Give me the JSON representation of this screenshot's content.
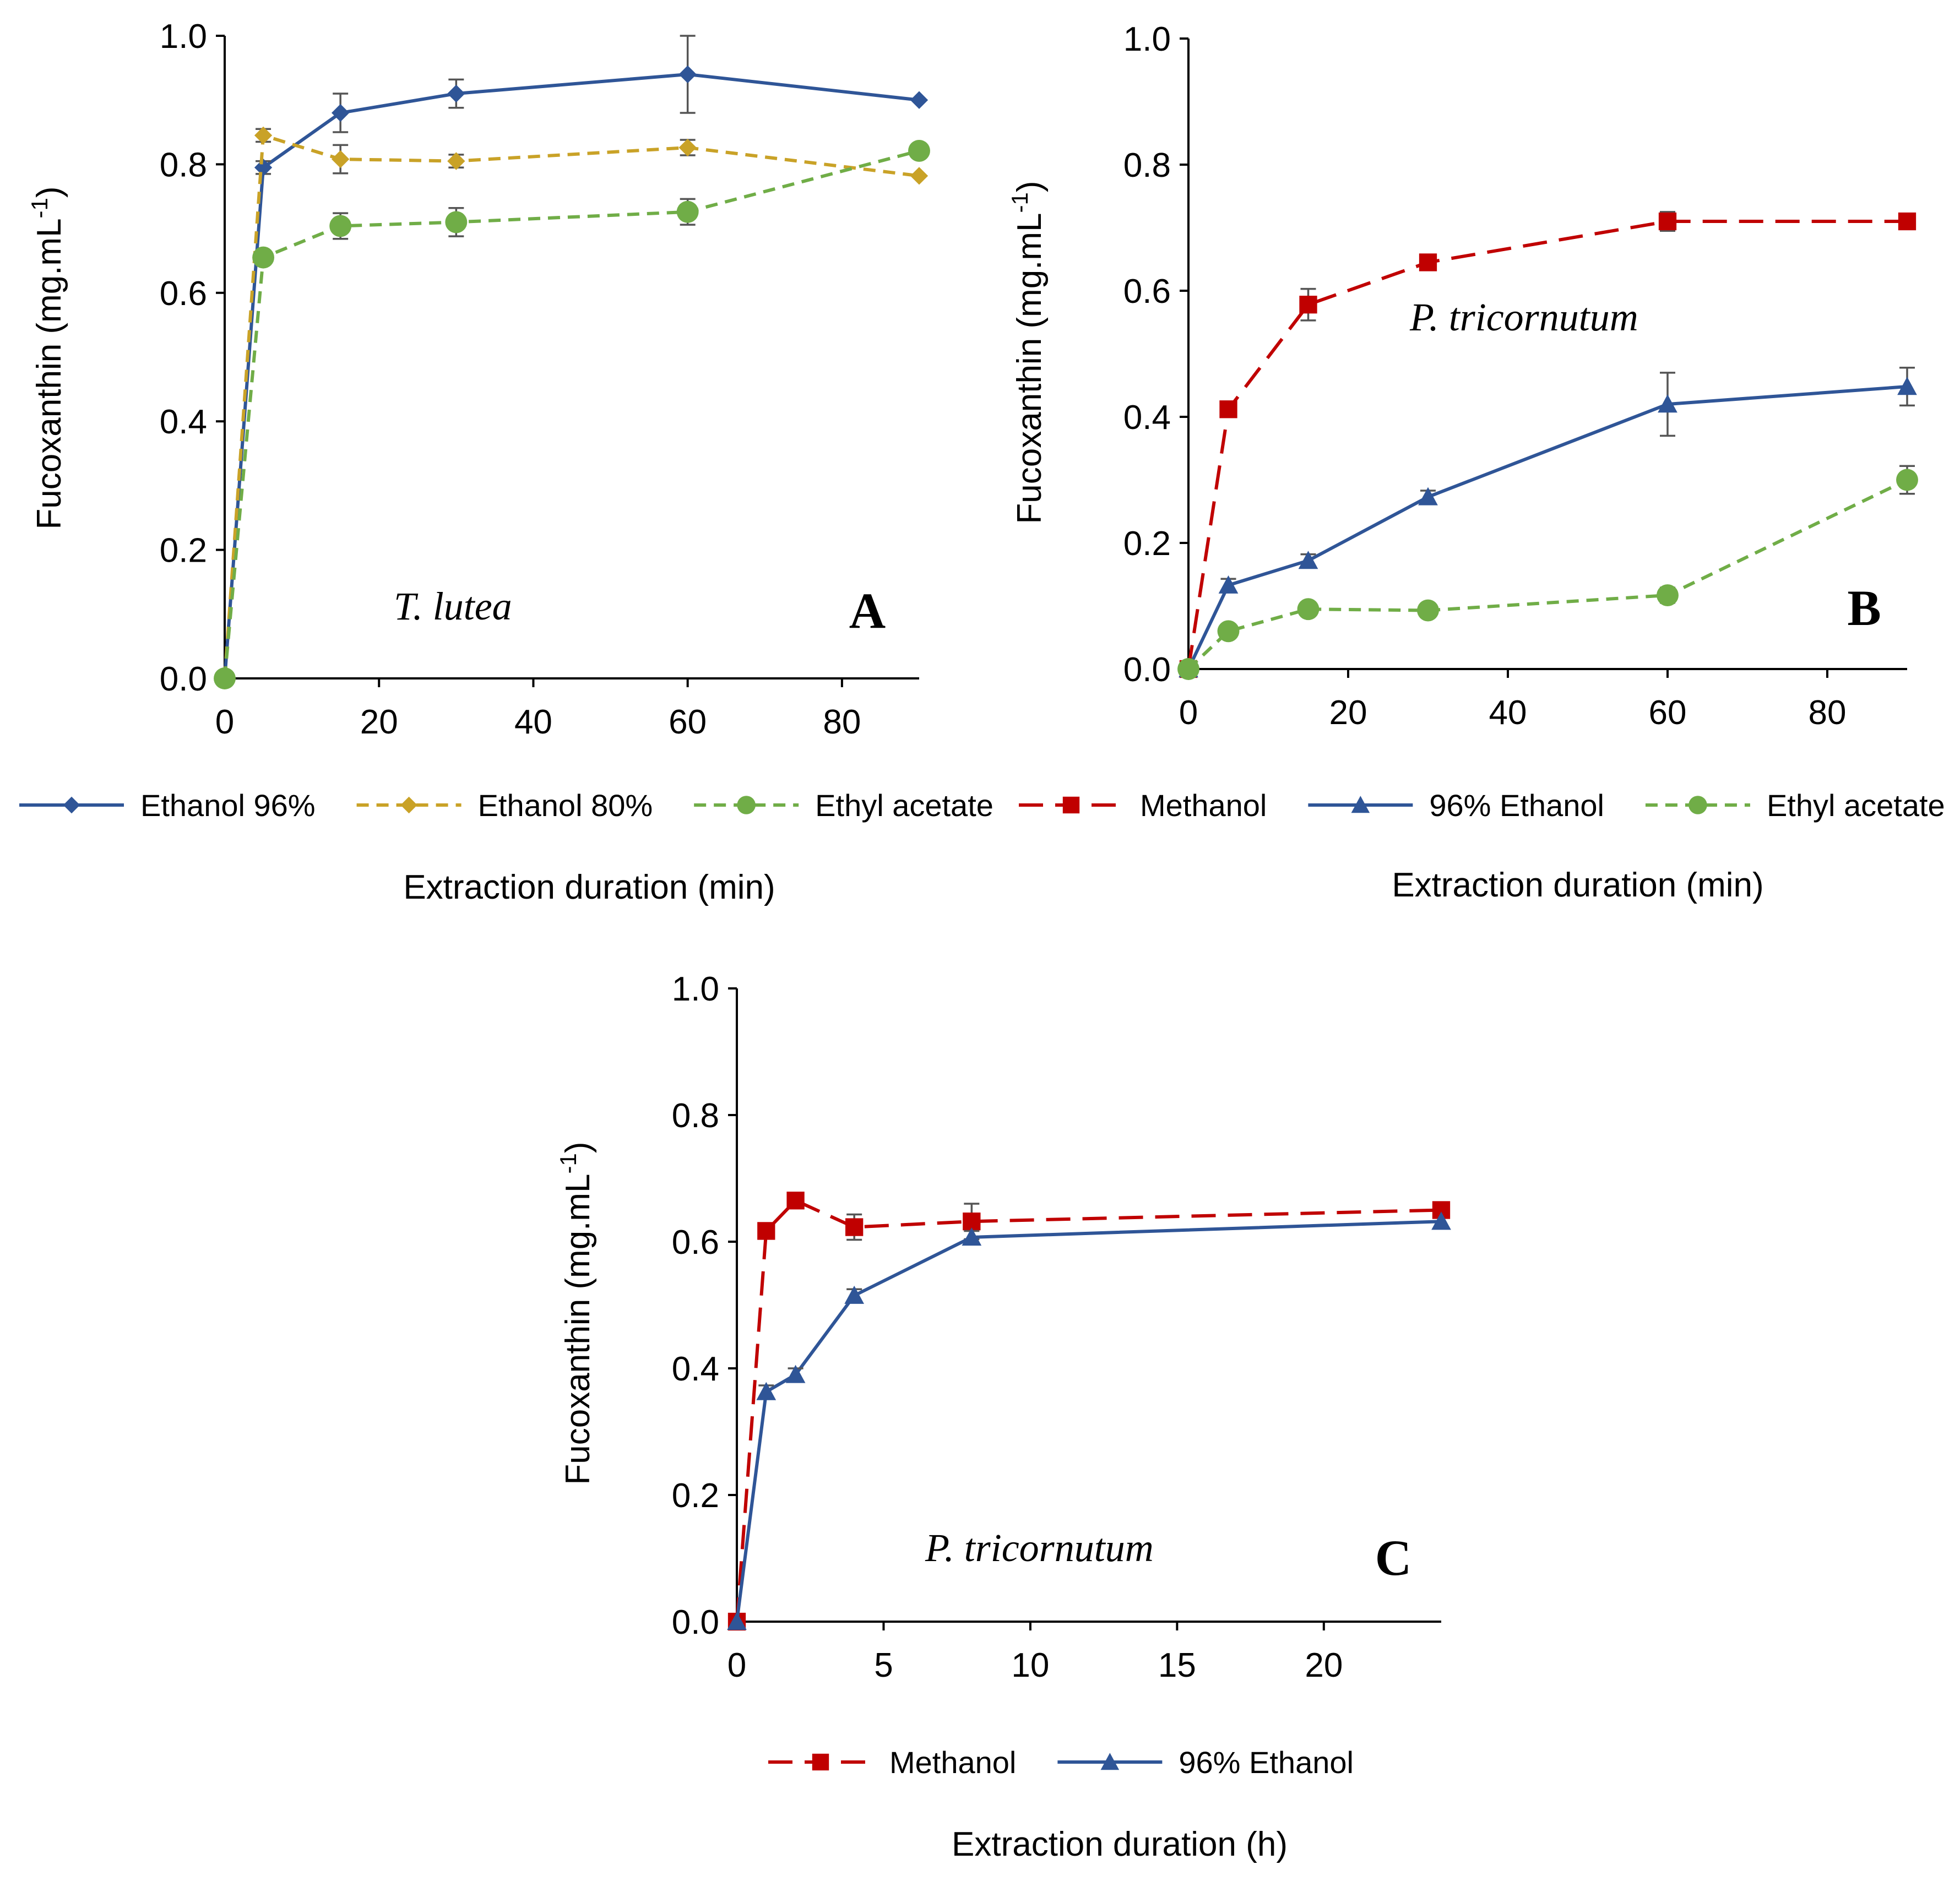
{
  "colors": {
    "blue": "#2F5597",
    "gold": "#C9A227",
    "green": "#70AD47",
    "red": "#C00000",
    "errorbar": "#555555"
  },
  "chart_data": [
    {
      "panel": "A",
      "type": "line",
      "annotation": "T. lutea",
      "xlabel": "Extraction duration (min)",
      "ylabel": "Fucoxanthin (mg.mL",
      "ylabel_sup": "-1",
      "ylabel_close": ")",
      "xlim": [
        0,
        90
      ],
      "ylim": [
        0,
        1
      ],
      "xticks": [
        0,
        20,
        40,
        60,
        80
      ],
      "yticks": [
        0,
        0.2,
        0.4,
        0.6,
        0.8,
        1.0
      ],
      "xtick_labels": [
        "0",
        "20",
        "40",
        "60",
        "80"
      ],
      "ytick_labels": [
        "0.0",
        "0.2",
        "0.4",
        "0.6",
        "0.8",
        "1.0"
      ],
      "legend_position": "bottom",
      "series": [
        {
          "name": "Ethanol 96%",
          "color": "blue",
          "dash": "solid",
          "marker": "diamond",
          "x": [
            0,
            5,
            15,
            30,
            60,
            90
          ],
          "y": [
            0.0,
            0.795,
            0.88,
            0.91,
            0.94,
            0.9
          ],
          "err": [
            0,
            0.01,
            0.03,
            0.022,
            0.06,
            0
          ]
        },
        {
          "name": "Ethanol 80%",
          "color": "gold",
          "dash": "dash",
          "marker": "diamond",
          "x": [
            0,
            5,
            15,
            30,
            60,
            90
          ],
          "y": [
            0.0,
            0.845,
            0.808,
            0.805,
            0.826,
            0.782
          ],
          "err": [
            0,
            0.01,
            0.022,
            0.01,
            0.012,
            0
          ]
        },
        {
          "name": "Ethyl acetate",
          "color": "green",
          "dash": "dash",
          "marker": "circle",
          "x": [
            0,
            5,
            15,
            30,
            60,
            90
          ],
          "y": [
            0.0,
            0.655,
            0.704,
            0.71,
            0.726,
            0.821
          ],
          "err": [
            0,
            0.01,
            0.02,
            0.022,
            0.02,
            0
          ]
        }
      ]
    },
    {
      "panel": "B",
      "type": "line",
      "annotation": "P. tricornutum",
      "xlabel": "Extraction duration (min)",
      "ylabel": "Fucoxanthin (mg.mL",
      "ylabel_sup": "-1",
      "ylabel_close": ")",
      "xlim": [
        0,
        90
      ],
      "ylim": [
        0,
        1
      ],
      "xticks": [
        0,
        20,
        40,
        60,
        80
      ],
      "yticks": [
        0,
        0.2,
        0.4,
        0.6,
        0.8,
        1.0
      ],
      "xtick_labels": [
        "0",
        "20",
        "40",
        "60",
        "80"
      ],
      "ytick_labels": [
        "0.0",
        "0.2",
        "0.4",
        "0.6",
        "0.8",
        "1.0"
      ],
      "legend_position": "bottom",
      "series": [
        {
          "name": "Methanol",
          "color": "red",
          "dash": "longdash",
          "marker": "square",
          "x": [
            0,
            5,
            15,
            30,
            60,
            90
          ],
          "y": [
            0.0,
            0.412,
            0.578,
            0.645,
            0.71,
            0.71
          ],
          "err": [
            0,
            0.01,
            0.025,
            0.01,
            0.015,
            0
          ]
        },
        {
          "name": "96% Ethanol",
          "color": "blue",
          "dash": "solid",
          "marker": "triangle",
          "x": [
            0,
            5,
            15,
            30,
            60,
            90
          ],
          "y": [
            0.0,
            0.133,
            0.172,
            0.273,
            0.42,
            0.448
          ],
          "err": [
            0,
            0.01,
            0.01,
            0.01,
            0.05,
            0.03
          ]
        },
        {
          "name": "Ethyl acetate",
          "color": "green",
          "dash": "dash",
          "marker": "circle",
          "x": [
            0,
            5,
            15,
            30,
            60,
            90
          ],
          "y": [
            0.0,
            0.06,
            0.095,
            0.093,
            0.117,
            0.3
          ],
          "err": [
            0,
            0.008,
            0.008,
            0.008,
            0.012,
            0.022
          ]
        }
      ]
    },
    {
      "panel": "C",
      "type": "line",
      "annotation": "P. tricornutum",
      "xlabel": "Extraction duration (h)",
      "ylabel": "Fucoxanthin (mg.mL",
      "ylabel_sup": "-1",
      "ylabel_close": ")",
      "xlim": [
        0,
        24
      ],
      "ylim": [
        0,
        1
      ],
      "xticks": [
        0,
        5,
        10,
        15,
        20
      ],
      "yticks": [
        0,
        0.2,
        0.4,
        0.6,
        0.8,
        1.0
      ],
      "xtick_labels": [
        "0",
        "5",
        "10",
        "15",
        "20"
      ],
      "ytick_labels": [
        "0.0",
        "0.2",
        "0.4",
        "0.6",
        "0.8",
        "1.0"
      ],
      "legend_position": "bottom",
      "series": [
        {
          "name": "Methanol",
          "color": "red",
          "dash": "longdash",
          "marker": "square",
          "x": [
            0,
            1,
            2,
            4,
            8,
            24
          ],
          "y": [
            0.0,
            0.617,
            0.665,
            0.623,
            0.632,
            0.65
          ],
          "err": [
            0,
            0.01,
            0.008,
            0.02,
            0.028,
            0
          ]
        },
        {
          "name": "96% Ethanol",
          "color": "blue",
          "dash": "solid",
          "marker": "triangle",
          "x": [
            0,
            1,
            2,
            4,
            8,
            24
          ],
          "y": [
            0.0,
            0.363,
            0.39,
            0.515,
            0.607,
            0.632
          ],
          "err": [
            0,
            0.01,
            0.01,
            0.01,
            0.01,
            0
          ]
        }
      ]
    }
  ]
}
